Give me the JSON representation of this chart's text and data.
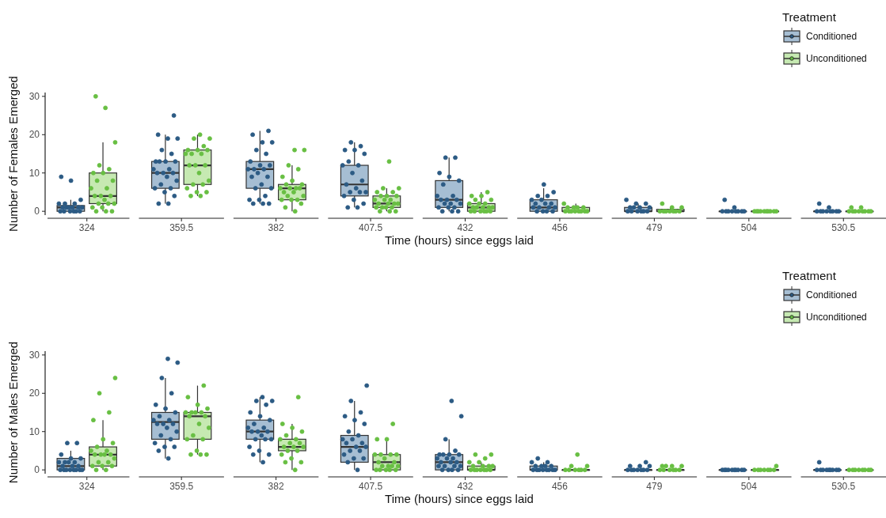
{
  "chart_data": [
    {
      "type": "box",
      "xlabel": "Time (hours) since eggs laid",
      "ylabel": "Number of Females Emerged",
      "legend_title": "Treatment",
      "legend": "top right",
      "ylim": [
        -1,
        31
      ],
      "yticks": [
        0,
        10,
        20,
        30
      ],
      "categories": [
        "324",
        "359.5",
        "382",
        "407.5",
        "432",
        "456",
        "479",
        "504",
        "530.5"
      ],
      "series": [
        {
          "name": "Conditioned",
          "color": "#a6bed3",
          "boxes": [
            {
              "low": 0,
              "q1": 0,
              "median": 1,
              "q3": 1.5,
              "high": 3
            },
            {
              "low": 2,
              "q1": 6,
              "median": 10,
              "q3": 13,
              "high": 20
            },
            {
              "low": 2,
              "q1": 6,
              "median": 11,
              "q3": 13,
              "high": 21
            },
            {
              "low": 1,
              "q1": 4,
              "median": 7,
              "q3": 12,
              "high": 18
            },
            {
              "low": 0,
              "q1": 1,
              "median": 3,
              "q3": 8,
              "high": 14
            },
            {
              "low": 0,
              "q1": 0,
              "median": 1,
              "q3": 3,
              "high": 6
            },
            {
              "low": 0,
              "q1": 0,
              "median": 0,
              "q3": 1,
              "high": 2
            },
            {
              "low": 0,
              "q1": 0,
              "median": 0,
              "q3": 0,
              "high": 0
            },
            {
              "low": 0,
              "q1": 0,
              "median": 0,
              "q3": 0,
              "high": 0
            }
          ]
        },
        {
          "name": "Unconditioned",
          "color": "#c6e9b2",
          "boxes": [
            {
              "low": 0,
              "q1": 2,
              "median": 4,
              "q3": 10,
              "high": 18
            },
            {
              "low": 4,
              "q1": 7,
              "median": 12,
              "q3": 16,
              "high": 20
            },
            {
              "low": 0,
              "q1": 3,
              "median": 6,
              "q3": 7,
              "high": 12
            },
            {
              "low": 0,
              "q1": 1,
              "median": 2,
              "q3": 4,
              "high": 6
            },
            {
              "low": 0,
              "q1": 0,
              "median": 1,
              "q3": 2,
              "high": 5
            },
            {
              "low": 0,
              "q1": 0,
              "median": 0,
              "q3": 1,
              "high": 2
            },
            {
              "low": 0,
              "q1": 0,
              "median": 0,
              "q3": 0.5,
              "high": 1
            },
            {
              "low": 0,
              "q1": 0,
              "median": 0,
              "q3": 0,
              "high": 0
            },
            {
              "low": 0,
              "q1": 0,
              "median": 0,
              "q3": 0,
              "high": 0
            }
          ]
        },
        {
          "type": "scatter",
          "color": "#2c5b84",
          "x": [
            "324",
            "324",
            "324",
            "324",
            "324",
            "324",
            "324",
            "324",
            "324",
            "324",
            "324",
            "324",
            "324",
            "324",
            "324",
            "324",
            "324",
            "324",
            "359.5",
            "359.5",
            "359.5",
            "359.5",
            "359.5",
            "359.5",
            "359.5",
            "359.5",
            "359.5",
            "359.5",
            "359.5",
            "359.5",
            "359.5",
            "359.5",
            "359.5",
            "359.5",
            "359.5",
            "359.5",
            "359.5",
            "359.5",
            "359.5",
            "359.5",
            "359.5",
            "359.5",
            "382",
            "382",
            "382",
            "382",
            "382",
            "382",
            "382",
            "382",
            "382",
            "382",
            "382",
            "382",
            "382",
            "382",
            "382",
            "382",
            "382",
            "382",
            "382",
            "382",
            "382",
            "382",
            "382",
            "382",
            "407.5",
            "407.5",
            "407.5",
            "407.5",
            "407.5",
            "407.5",
            "407.5",
            "407.5",
            "407.5",
            "407.5",
            "407.5",
            "407.5",
            "407.5",
            "407.5",
            "407.5",
            "407.5",
            "407.5",
            "407.5",
            "407.5",
            "407.5",
            "432",
            "432",
            "432",
            "432",
            "432",
            "432",
            "432",
            "432",
            "432",
            "432",
            "432",
            "432",
            "432",
            "432",
            "432",
            "432",
            "432",
            "432",
            "432",
            "432",
            "456",
            "456",
            "456",
            "456",
            "456",
            "456",
            "456",
            "456",
            "456",
            "456",
            "456",
            "456",
            "456",
            "456",
            "456",
            "456",
            "456",
            "479",
            "479",
            "479",
            "479",
            "479",
            "479",
            "479",
            "479",
            "479",
            "479",
            "479",
            "479",
            "479",
            "504",
            "504",
            "504",
            "504",
            "504",
            "504",
            "504",
            "504",
            "504",
            "504",
            "530.5",
            "530.5",
            "530.5",
            "530.5",
            "530.5",
            "530.5",
            "530.5",
            "530.5",
            "530.5",
            "530.5"
          ],
          "values": [
            0,
            0,
            0,
            0,
            0,
            0,
            1,
            1,
            1,
            1,
            1,
            1,
            2,
            2,
            2,
            3,
            8,
            9,
            2,
            2,
            4,
            5,
            6,
            6,
            7,
            8,
            9,
            10,
            10,
            10,
            11,
            11,
            13,
            13,
            13,
            13,
            15,
            16,
            19,
            19,
            20,
            25,
            2,
            2,
            2,
            3,
            3,
            4,
            6,
            6,
            7,
            9,
            9,
            10,
            11,
            11,
            11,
            12,
            12,
            13,
            15,
            16,
            18,
            18,
            20,
            21,
            1,
            1,
            2,
            3,
            4,
            5,
            5,
            5,
            6,
            7,
            8,
            10,
            12,
            12,
            13,
            15,
            16,
            16,
            17,
            18,
            0,
            0,
            0,
            1,
            1,
            1,
            2,
            2,
            2,
            3,
            3,
            3,
            4,
            4,
            7,
            8,
            9,
            10,
            14,
            14,
            0,
            0,
            0,
            0,
            1,
            1,
            1,
            1,
            2,
            2,
            2,
            3,
            3,
            4,
            4,
            5,
            7,
            0,
            0,
            0,
            0,
            0,
            0,
            1,
            1,
            1,
            1,
            2,
            2,
            3,
            0,
            0,
            0,
            0,
            0,
            0,
            0,
            0,
            1,
            3,
            0,
            0,
            0,
            0,
            0,
            0,
            0,
            0,
            1,
            2
          ]
        },
        {
          "type": "scatter",
          "color": "#68bf43",
          "x": [
            "324",
            "324",
            "324",
            "324",
            "324",
            "324",
            "324",
            "324",
            "324",
            "324",
            "324",
            "324",
            "324",
            "324",
            "324",
            "324",
            "324",
            "324",
            "324",
            "324",
            "324",
            "324",
            "324",
            "359.5",
            "359.5",
            "359.5",
            "359.5",
            "359.5",
            "359.5",
            "359.5",
            "359.5",
            "359.5",
            "359.5",
            "359.5",
            "359.5",
            "359.5",
            "359.5",
            "359.5",
            "359.5",
            "359.5",
            "359.5",
            "359.5",
            "359.5",
            "359.5",
            "359.5",
            "382",
            "382",
            "382",
            "382",
            "382",
            "382",
            "382",
            "382",
            "382",
            "382",
            "382",
            "382",
            "382",
            "382",
            "382",
            "382",
            "382",
            "382",
            "382",
            "382",
            "382",
            "382",
            "407.5",
            "407.5",
            "407.5",
            "407.5",
            "407.5",
            "407.5",
            "407.5",
            "407.5",
            "407.5",
            "407.5",
            "407.5",
            "407.5",
            "407.5",
            "407.5",
            "407.5",
            "407.5",
            "407.5",
            "407.5",
            "407.5",
            "407.5",
            "407.5",
            "407.5",
            "432",
            "432",
            "432",
            "432",
            "432",
            "432",
            "432",
            "432",
            "432",
            "432",
            "432",
            "432",
            "432",
            "432",
            "432",
            "432",
            "432",
            "432",
            "432",
            "456",
            "456",
            "456",
            "456",
            "456",
            "456",
            "456",
            "456",
            "456",
            "456",
            "456",
            "456",
            "456",
            "479",
            "479",
            "479",
            "479",
            "479",
            "479",
            "479",
            "479",
            "479",
            "479",
            "504",
            "504",
            "504",
            "504",
            "504",
            "504",
            "504",
            "504",
            "504",
            "504",
            "530.5",
            "530.5",
            "530.5",
            "530.5",
            "530.5",
            "530.5",
            "530.5",
            "530.5",
            "530.5",
            "530.5"
          ],
          "values": [
            0,
            0,
            0,
            1,
            1,
            2,
            2,
            2,
            3,
            4,
            4,
            4,
            6,
            6,
            8,
            8,
            10,
            10,
            11,
            12,
            18,
            27,
            30,
            4,
            4,
            5,
            5,
            6,
            7,
            7,
            8,
            10,
            12,
            12,
            12,
            15,
            15,
            15,
            16,
            16,
            16,
            17,
            19,
            19,
            20,
            0,
            1,
            2,
            3,
            3,
            3,
            4,
            4,
            5,
            5,
            6,
            6,
            6,
            6,
            7,
            7,
            8,
            9,
            11,
            12,
            16,
            16,
            0,
            0,
            0,
            1,
            1,
            1,
            1,
            2,
            2,
            2,
            2,
            3,
            3,
            3,
            4,
            4,
            4,
            5,
            5,
            6,
            6,
            13,
            0,
            0,
            0,
            0,
            0,
            0,
            1,
            1,
            1,
            1,
            1,
            2,
            2,
            2,
            3,
            3,
            4,
            4,
            5,
            0,
            0,
            0,
            0,
            0,
            0,
            0,
            0,
            1,
            1,
            1,
            1,
            2,
            0,
            0,
            0,
            0,
            0,
            0,
            0,
            1,
            1,
            2,
            0,
            0,
            0,
            0,
            0,
            0,
            0,
            0,
            0,
            0,
            0,
            0,
            0,
            0,
            0,
            0,
            0,
            0,
            1,
            1
          ]
        }
      ]
    },
    {
      "type": "box",
      "xlabel": "Time (hours) since eggs laid",
      "ylabel": "Number of Males Emerged",
      "legend_title": "Treatment",
      "legend": "top right",
      "ylim": [
        -1,
        31
      ],
      "yticks": [
        0,
        10,
        20,
        30
      ],
      "categories": [
        "324",
        "359.5",
        "382",
        "407.5",
        "432",
        "456",
        "479",
        "504",
        "530.5"
      ],
      "series": [
        {
          "name": "Conditioned",
          "color": "#a6bed3",
          "boxes": [
            {
              "low": 0,
              "q1": 0,
              "median": 1,
              "q3": 3,
              "high": 5
            },
            {
              "low": 3,
              "q1": 8,
              "median": 12.5,
              "q3": 15,
              "high": 24
            },
            {
              "low": 2,
              "q1": 8,
              "median": 10,
              "q3": 13,
              "high": 19
            },
            {
              "low": 0,
              "q1": 2,
              "median": 6,
              "q3": 9,
              "high": 18
            },
            {
              "low": 0,
              "q1": 0,
              "median": 2,
              "q3": 4,
              "high": 8
            },
            {
              "low": 0,
              "q1": 0,
              "median": 0,
              "q3": 1,
              "high": 2
            },
            {
              "low": 0,
              "q1": 0,
              "median": 0,
              "q3": 0,
              "high": 0
            },
            {
              "low": 0,
              "q1": 0,
              "median": 0,
              "q3": 0,
              "high": 0
            },
            {
              "low": 0,
              "q1": 0,
              "median": 0,
              "q3": 0,
              "high": 0
            }
          ]
        },
        {
          "name": "Unconditioned",
          "color": "#c6e9b2",
          "boxes": [
            {
              "low": 0,
              "q1": 1,
              "median": 4,
              "q3": 6,
              "high": 13
            },
            {
              "low": 4,
              "q1": 8,
              "median": 14,
              "q3": 15,
              "high": 22
            },
            {
              "low": 0,
              "q1": 5,
              "median": 6,
              "q3": 8,
              "high": 12
            },
            {
              "low": 0,
              "q1": 0,
              "median": 2,
              "q3": 4,
              "high": 8
            },
            {
              "low": 0,
              "q1": 0,
              "median": 0,
              "q3": 1,
              "high": 2
            },
            {
              "low": 0,
              "q1": 0,
              "median": 0,
              "q3": 0,
              "high": 0
            },
            {
              "low": 0,
              "q1": 0,
              "median": 0,
              "q3": 0,
              "high": 0
            },
            {
              "low": 0,
              "q1": 0,
              "median": 0,
              "q3": 0,
              "high": 0
            },
            {
              "low": 0,
              "q1": 0,
              "median": 0,
              "q3": 0,
              "high": 0
            }
          ]
        },
        {
          "type": "scatter",
          "color": "#2c5b84",
          "x": [
            "324",
            "324",
            "324",
            "324",
            "324",
            "324",
            "324",
            "324",
            "324",
            "324",
            "324",
            "324",
            "324",
            "324",
            "324",
            "324",
            "324",
            "324",
            "324",
            "324",
            "359.5",
            "359.5",
            "359.5",
            "359.5",
            "359.5",
            "359.5",
            "359.5",
            "359.5",
            "359.5",
            "359.5",
            "359.5",
            "359.5",
            "359.5",
            "359.5",
            "359.5",
            "359.5",
            "359.5",
            "359.5",
            "359.5",
            "359.5",
            "359.5",
            "359.5",
            "382",
            "382",
            "382",
            "382",
            "382",
            "382",
            "382",
            "382",
            "382",
            "382",
            "382",
            "382",
            "382",
            "382",
            "382",
            "382",
            "382",
            "382",
            "382",
            "382",
            "382",
            "382",
            "407.5",
            "407.5",
            "407.5",
            "407.5",
            "407.5",
            "407.5",
            "407.5",
            "407.5",
            "407.5",
            "407.5",
            "407.5",
            "407.5",
            "407.5",
            "407.5",
            "407.5",
            "407.5",
            "407.5",
            "407.5",
            "407.5",
            "407.5",
            "407.5",
            "432",
            "432",
            "432",
            "432",
            "432",
            "432",
            "432",
            "432",
            "432",
            "432",
            "432",
            "432",
            "432",
            "432",
            "432",
            "432",
            "432",
            "432",
            "432",
            "432",
            "432",
            "432",
            "456",
            "456",
            "456",
            "456",
            "456",
            "456",
            "456",
            "456",
            "456",
            "456",
            "456",
            "456",
            "456",
            "456",
            "456",
            "479",
            "479",
            "479",
            "479",
            "479",
            "479",
            "479",
            "479",
            "479",
            "479",
            "479",
            "504",
            "504",
            "504",
            "504",
            "504",
            "504",
            "504",
            "504",
            "504",
            "504",
            "530.5",
            "530.5",
            "530.5",
            "530.5",
            "530.5",
            "530.5",
            "530.5",
            "530.5",
            "530.5",
            "530.5"
          ],
          "values": [
            0,
            0,
            0,
            0,
            0,
            0,
            0,
            0,
            1,
            1,
            1,
            2,
            2,
            2,
            2,
            3,
            3,
            4,
            7,
            7,
            3,
            5,
            6,
            6,
            7,
            8,
            9,
            10,
            11,
            12,
            12,
            12,
            13,
            13,
            14,
            15,
            16,
            17,
            20,
            24,
            28,
            29,
            2,
            4,
            4,
            5,
            6,
            8,
            8,
            8,
            9,
            10,
            10,
            10,
            11,
            11,
            12,
            13,
            14,
            15,
            17,
            18,
            18,
            19,
            0,
            2,
            3,
            3,
            4,
            5,
            5,
            6,
            6,
            7,
            7,
            8,
            8,
            9,
            10,
            12,
            13,
            14,
            15,
            18,
            22,
            0,
            0,
            0,
            0,
            1,
            1,
            1,
            1,
            2,
            2,
            2,
            3,
            3,
            3,
            4,
            4,
            4,
            4,
            5,
            8,
            14,
            18,
            0,
            0,
            0,
            0,
            0,
            0,
            0,
            0,
            1,
            1,
            1,
            1,
            2,
            2,
            3,
            0,
            0,
            0,
            0,
            0,
            0,
            0,
            1,
            1,
            1,
            2,
            0,
            0,
            0,
            0,
            0,
            0,
            0,
            0,
            0,
            0,
            0,
            0,
            0,
            0,
            0,
            0,
            0,
            0,
            0,
            2
          ]
        },
        {
          "type": "scatter",
          "color": "#68bf43",
          "x": [
            "324",
            "324",
            "324",
            "324",
            "324",
            "324",
            "324",
            "324",
            "324",
            "324",
            "324",
            "324",
            "324",
            "324",
            "324",
            "324",
            "324",
            "324",
            "324",
            "324",
            "324",
            "359.5",
            "359.5",
            "359.5",
            "359.5",
            "359.5",
            "359.5",
            "359.5",
            "359.5",
            "359.5",
            "359.5",
            "359.5",
            "359.5",
            "359.5",
            "359.5",
            "359.5",
            "359.5",
            "359.5",
            "359.5",
            "359.5",
            "382",
            "382",
            "382",
            "382",
            "382",
            "382",
            "382",
            "382",
            "382",
            "382",
            "382",
            "382",
            "382",
            "382",
            "382",
            "382",
            "382",
            "382",
            "382",
            "407.5",
            "407.5",
            "407.5",
            "407.5",
            "407.5",
            "407.5",
            "407.5",
            "407.5",
            "407.5",
            "407.5",
            "407.5",
            "407.5",
            "407.5",
            "407.5",
            "407.5",
            "407.5",
            "407.5",
            "407.5",
            "407.5",
            "432",
            "432",
            "432",
            "432",
            "432",
            "432",
            "432",
            "432",
            "432",
            "432",
            "432",
            "432",
            "432",
            "432",
            "432",
            "432",
            "456",
            "456",
            "456",
            "456",
            "456",
            "456",
            "456",
            "456",
            "456",
            "479",
            "479",
            "479",
            "479",
            "479",
            "479",
            "479",
            "479",
            "479",
            "479",
            "504",
            "504",
            "504",
            "504",
            "504",
            "504",
            "504",
            "504",
            "530.5",
            "530.5",
            "530.5",
            "530.5",
            "530.5",
            "530.5",
            "530.5",
            "530.5"
          ],
          "values": [
            0,
            0,
            1,
            1,
            1,
            2,
            2,
            3,
            4,
            4,
            4,
            4,
            5,
            5,
            6,
            7,
            8,
            13,
            15,
            20,
            24,
            4,
            4,
            4,
            5,
            8,
            8,
            9,
            11,
            12,
            14,
            14,
            15,
            15,
            15,
            15,
            16,
            17,
            19,
            22,
            0,
            2,
            2,
            3,
            4,
            5,
            5,
            6,
            6,
            6,
            7,
            7,
            8,
            8,
            9,
            10,
            11,
            12,
            19,
            0,
            0,
            0,
            0,
            0,
            1,
            1,
            1,
            1,
            2,
            2,
            3,
            4,
            4,
            4,
            4,
            8,
            8,
            12,
            0,
            0,
            0,
            0,
            0,
            0,
            0,
            1,
            1,
            1,
            1,
            2,
            2,
            3,
            4,
            4,
            0,
            0,
            0,
            0,
            0,
            0,
            1,
            1,
            4,
            0,
            0,
            0,
            0,
            0,
            0,
            1,
            1,
            1,
            1,
            0,
            0,
            0,
            0,
            0,
            0,
            0,
            1,
            0,
            0,
            0,
            0,
            0,
            0,
            0,
            0
          ]
        }
      ]
    }
  ]
}
